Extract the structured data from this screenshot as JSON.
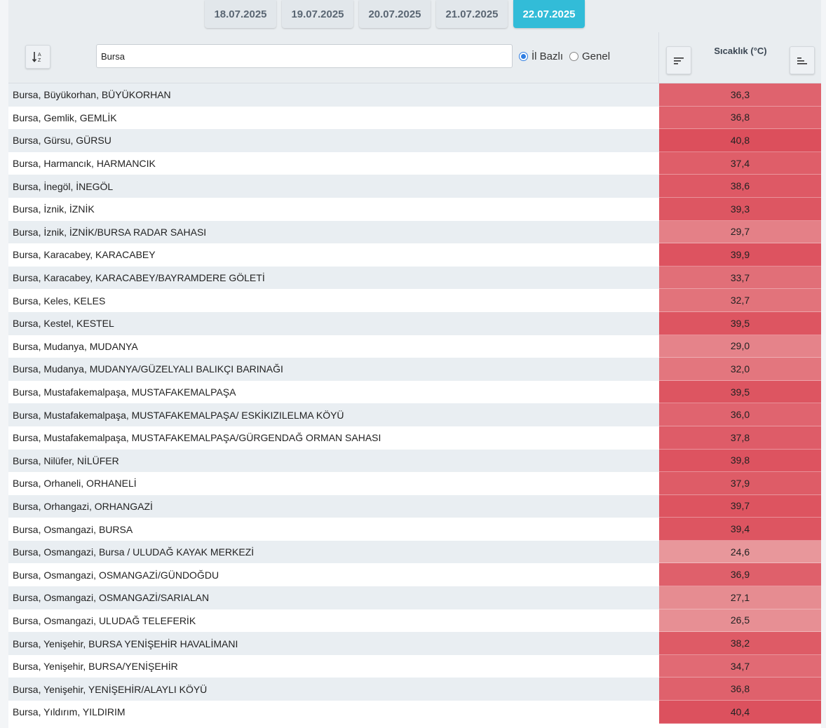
{
  "tabs": [
    {
      "label": "18.07.2025",
      "active": false
    },
    {
      "label": "19.07.2025",
      "active": false
    },
    {
      "label": "20.07.2025",
      "active": false
    },
    {
      "label": "21.07.2025",
      "active": false
    },
    {
      "label": "22.07.2025",
      "active": true
    }
  ],
  "colors": {
    "active_tab": "#32bcd8",
    "cell_min": "#e8979b",
    "cell_max": "#dc4f5c"
  },
  "search": {
    "value": "Bursa"
  },
  "filter": {
    "options": [
      {
        "label": "İl Bazlı",
        "checked": true
      },
      {
        "label": "Genel",
        "checked": false
      }
    ]
  },
  "column": {
    "title": "Sıcaklık (°C)",
    "sort_desc_icon": "sort-descending-icon",
    "sort_asc_icon": "sort-ascending-icon",
    "sort_alpha_icon": "sort-alpha-icon"
  },
  "rows": [
    {
      "name": "Bursa, Büyükorhan, BÜYÜKORHAN",
      "value": "36,3"
    },
    {
      "name": "Bursa, Gemlik, GEMLİK",
      "value": "36,8"
    },
    {
      "name": "Bursa, Gürsu, GÜRSU",
      "value": "40,8"
    },
    {
      "name": "Bursa, Harmancık, HARMANCIK",
      "value": "37,4"
    },
    {
      "name": "Bursa, İnegöl, İNEGÖL",
      "value": "38,6"
    },
    {
      "name": "Bursa, İznik, İZNİK",
      "value": "39,3"
    },
    {
      "name": "Bursa, İznik, İZNİK/BURSA RADAR SAHASI",
      "value": "29,7"
    },
    {
      "name": "Bursa, Karacabey, KARACABEY",
      "value": "39,9"
    },
    {
      "name": "Bursa, Karacabey, KARACABEY/BAYRAMDERE GÖLETİ",
      "value": "33,7"
    },
    {
      "name": "Bursa, Keles, KELES",
      "value": "32,7"
    },
    {
      "name": "Bursa, Kestel, KESTEL",
      "value": "39,5"
    },
    {
      "name": "Bursa, Mudanya, MUDANYA",
      "value": "29,0"
    },
    {
      "name": "Bursa, Mudanya, MUDANYA/GÜZELYALI BALIKÇI BARINAĞI",
      "value": "32,0"
    },
    {
      "name": "Bursa, Mustafakemalpaşa, MUSTAFAKEMALPAŞA",
      "value": "39,5"
    },
    {
      "name": "Bursa, Mustafakemalpaşa, MUSTAFAKEMALPAŞA/ ESKİKIZILELMA KÖYÜ",
      "value": "36,0"
    },
    {
      "name": "Bursa, Mustafakemalpaşa, MUSTAFAKEMALPAŞA/GÜRGENDAĞ ORMAN SAHASI",
      "value": "37,8"
    },
    {
      "name": "Bursa, Nilüfer, NİLÜFER",
      "value": "39,8"
    },
    {
      "name": "Bursa, Orhaneli, ORHANELİ",
      "value": "37,9"
    },
    {
      "name": "Bursa, Orhangazi, ORHANGAZİ",
      "value": "39,7"
    },
    {
      "name": "Bursa, Osmangazi, BURSA",
      "value": "39,4"
    },
    {
      "name": "Bursa, Osmangazi, Bursa / ULUDAĞ KAYAK MERKEZİ",
      "value": "24,6"
    },
    {
      "name": "Bursa, Osmangazi, OSMANGAZİ/GÜNDOĞDU",
      "value": "36,9"
    },
    {
      "name": "Bursa, Osmangazi, OSMANGAZİ/SARIALAN",
      "value": "27,1"
    },
    {
      "name": "Bursa, Osmangazi, ULUDAĞ TELEFERİK",
      "value": "26,5"
    },
    {
      "name": "Bursa, Yenişehir, BURSA YENİŞEHİR HAVALİMANI",
      "value": "38,2"
    },
    {
      "name": "Bursa, Yenişehir, BURSA/YENİŞEHİR",
      "value": "34,7"
    },
    {
      "name": "Bursa, Yenişehir, YENİŞEHİR/ALAYLI KÖYÜ",
      "value": "36,8"
    },
    {
      "name": "Bursa, Yıldırım, YILDIRIM",
      "value": "40,4"
    }
  ]
}
